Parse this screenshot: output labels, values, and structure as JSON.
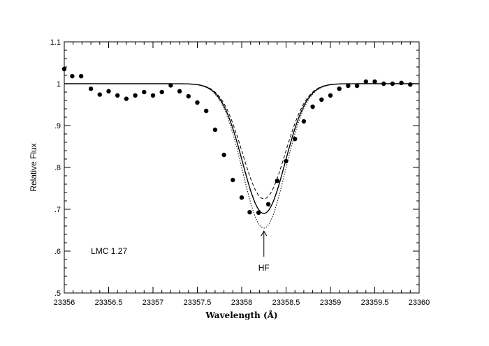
{
  "chart_data": {
    "type": "scatter",
    "title": "",
    "xlabel": "Wavelength (Å)",
    "ylabel": "Relative Flux",
    "xlim": [
      23356,
      23360
    ],
    "ylim": [
      0.5,
      1.1
    ],
    "x_ticks": [
      23356,
      23356.5,
      23357,
      23357.5,
      23358,
      23358.5,
      23359,
      23359.5,
      23360
    ],
    "x_tick_labels": [
      "23356",
      "23356.5",
      "23357",
      "23357.5",
      "23358",
      "23358.5",
      "23359",
      "23359.5",
      "23360"
    ],
    "y_ticks": [
      0.5,
      0.6,
      0.7,
      0.8,
      0.9,
      1.0,
      1.1
    ],
    "y_tick_labels": [
      ".5",
      ".6",
      ".7",
      ".8",
      ".9",
      "1",
      "1.1"
    ],
    "grid": false,
    "observed_points": {
      "x": [
        23356.0,
        23356.09,
        23356.19,
        23356.3,
        23356.4,
        23356.5,
        23356.6,
        23356.7,
        23356.8,
        23356.9,
        23357.0,
        23357.1,
        23357.2,
        23357.3,
        23357.4,
        23357.5,
        23357.6,
        23357.7,
        23357.8,
        23357.9,
        23358.0,
        23358.09,
        23358.19,
        23358.3,
        23358.4,
        23358.5,
        23358.6,
        23358.7,
        23358.8,
        23358.9,
        23359.0,
        23359.1,
        23359.2,
        23359.3,
        23359.4,
        23359.5,
        23359.6,
        23359.7,
        23359.8,
        23359.9
      ],
      "y": [
        1.035,
        1.018,
        1.018,
        0.988,
        0.974,
        0.982,
        0.972,
        0.964,
        0.972,
        0.98,
        0.972,
        0.98,
        0.996,
        0.982,
        0.97,
        0.955,
        0.935,
        0.89,
        0.83,
        0.77,
        0.728,
        0.693,
        0.692,
        0.712,
        0.768,
        0.815,
        0.868,
        0.91,
        0.945,
        0.962,
        0.972,
        0.988,
        0.995,
        0.995,
        1.005,
        1.005,
        1.0,
        1.0,
        1.002,
        0.998
      ]
    },
    "model_curves": [
      {
        "line_style": "solid",
        "depth": 0.31
      },
      {
        "line_style": "dashed",
        "depth": 0.275
      },
      {
        "line_style": "dotted",
        "depth": 0.345
      }
    ],
    "line_center": 23358.25,
    "line_sigma": 0.24,
    "annotations": [
      {
        "text": "LMC 1.27",
        "x": 23356.3,
        "y": 0.6
      },
      {
        "text": "HF",
        "x": 23358.25,
        "y": 0.58,
        "arrow_to_y": 0.648
      }
    ]
  }
}
